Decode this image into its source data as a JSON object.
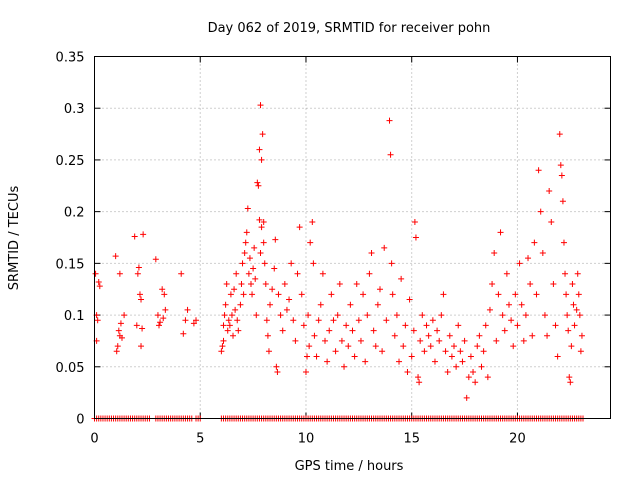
{
  "chart_data": {
    "type": "scatter",
    "title": "Day 062 of 2019, SRMTID for receiver pohn",
    "xlabel": "GPS time / hours",
    "ylabel": "SRMTID / TECUs",
    "xlim": [
      0,
      24.4
    ],
    "ylim": [
      0,
      0.35
    ],
    "xticks": [
      0,
      5,
      10,
      15,
      20
    ],
    "xtick_labels": [
      "0",
      "5",
      "10",
      "15",
      "20"
    ],
    "yticks": [
      0,
      0.05,
      0.1,
      0.15,
      0.2,
      0.25,
      0.3,
      0.35
    ],
    "ytick_labels": [
      "0",
      "0.05",
      "0.1",
      "0.15",
      "0.2",
      "0.25",
      "0.3",
      "0.35"
    ],
    "grid": true,
    "marker": "+",
    "color": "#ff0000",
    "series": [
      {
        "name": "SRMTID",
        "points": [
          [
            0.05,
            0.14
          ],
          [
            0.1,
            0.1
          ],
          [
            0.15,
            0.095
          ],
          [
            0.1,
            0.075
          ],
          [
            0.2,
            0.132
          ],
          [
            0.25,
            0.128
          ],
          [
            1.0,
            0.157
          ],
          [
            1.05,
            0.065
          ],
          [
            1.1,
            0.07
          ],
          [
            1.15,
            0.085
          ],
          [
            1.2,
            0.08
          ],
          [
            1.25,
            0.092
          ],
          [
            1.3,
            0.078
          ],
          [
            1.2,
            0.14
          ],
          [
            1.4,
            0.1
          ],
          [
            1.9,
            0.176
          ],
          [
            2.0,
            0.09
          ],
          [
            2.05,
            0.14
          ],
          [
            2.1,
            0.146
          ],
          [
            2.15,
            0.12
          ],
          [
            2.2,
            0.115
          ],
          [
            2.3,
            0.178
          ],
          [
            2.2,
            0.07
          ],
          [
            2.25,
            0.087
          ],
          [
            2.9,
            0.154
          ],
          [
            3.0,
            0.1
          ],
          [
            3.05,
            0.09
          ],
          [
            3.1,
            0.093
          ],
          [
            3.2,
            0.125
          ],
          [
            3.25,
            0.097
          ],
          [
            3.3,
            0.12
          ],
          [
            3.35,
            0.105
          ],
          [
            4.1,
            0.14
          ],
          [
            4.2,
            0.082
          ],
          [
            4.3,
            0.095
          ],
          [
            4.4,
            0.105
          ],
          [
            4.7,
            0.092
          ],
          [
            4.8,
            0.095
          ],
          [
            6.0,
            0.065
          ],
          [
            6.05,
            0.07
          ],
          [
            6.1,
            0.075
          ],
          [
            6.1,
            0.09
          ],
          [
            6.15,
            0.1
          ],
          [
            6.2,
            0.11
          ],
          [
            6.25,
            0.13
          ],
          [
            6.3,
            0.085
          ],
          [
            6.35,
            0.095
          ],
          [
            6.4,
            0.09
          ],
          [
            6.45,
            0.12
          ],
          [
            6.5,
            0.1
          ],
          [
            6.55,
            0.08
          ],
          [
            6.6,
            0.125
          ],
          [
            6.65,
            0.105
          ],
          [
            6.7,
            0.14
          ],
          [
            6.75,
            0.095
          ],
          [
            6.8,
            0.085
          ],
          [
            6.9,
            0.11
          ],
          [
            6.95,
            0.13
          ],
          [
            7.0,
            0.15
          ],
          [
            7.05,
            0.12
          ],
          [
            7.1,
            0.16
          ],
          [
            7.15,
            0.17
          ],
          [
            7.2,
            0.18
          ],
          [
            7.25,
            0.203
          ],
          [
            7.3,
            0.14
          ],
          [
            7.35,
            0.155
          ],
          [
            7.4,
            0.13
          ],
          [
            7.45,
            0.12
          ],
          [
            7.5,
            0.145
          ],
          [
            7.55,
            0.165
          ],
          [
            7.6,
            0.135
          ],
          [
            7.65,
            0.1
          ],
          [
            7.7,
            0.228
          ],
          [
            7.75,
            0.225
          ],
          [
            7.8,
            0.26
          ],
          [
            7.85,
            0.303
          ],
          [
            7.9,
            0.25
          ],
          [
            7.95,
            0.275
          ],
          [
            8.0,
            0.19
          ],
          [
            7.8,
            0.192
          ],
          [
            7.9,
            0.185
          ],
          [
            8.0,
            0.17
          ],
          [
            7.85,
            0.16
          ],
          [
            8.05,
            0.15
          ],
          [
            8.1,
            0.13
          ],
          [
            8.15,
            0.095
          ],
          [
            8.2,
            0.08
          ],
          [
            8.25,
            0.065
          ],
          [
            8.3,
            0.11
          ],
          [
            8.4,
            0.125
          ],
          [
            8.5,
            0.145
          ],
          [
            8.55,
            0.173
          ],
          [
            8.6,
            0.05
          ],
          [
            8.65,
            0.045
          ],
          [
            8.7,
            0.12
          ],
          [
            8.8,
            0.1
          ],
          [
            8.9,
            0.085
          ],
          [
            9.0,
            0.13
          ],
          [
            9.1,
            0.105
          ],
          [
            9.2,
            0.115
          ],
          [
            9.3,
            0.15
          ],
          [
            9.4,
            0.095
          ],
          [
            9.5,
            0.075
          ],
          [
            9.6,
            0.14
          ],
          [
            9.7,
            0.185
          ],
          [
            9.8,
            0.12
          ],
          [
            9.9,
            0.09
          ],
          [
            10.0,
            0.045
          ],
          [
            10.05,
            0.06
          ],
          [
            10.1,
            0.1
          ],
          [
            10.15,
            0.07
          ],
          [
            10.2,
            0.17
          ],
          [
            10.3,
            0.19
          ],
          [
            10.35,
            0.15
          ],
          [
            10.4,
            0.08
          ],
          [
            10.5,
            0.06
          ],
          [
            10.6,
            0.095
          ],
          [
            10.7,
            0.11
          ],
          [
            10.8,
            0.14
          ],
          [
            10.9,
            0.075
          ],
          [
            11.0,
            0.055
          ],
          [
            11.1,
            0.085
          ],
          [
            11.2,
            0.12
          ],
          [
            11.3,
            0.095
          ],
          [
            11.4,
            0.065
          ],
          [
            11.5,
            0.1
          ],
          [
            11.6,
            0.13
          ],
          [
            11.7,
            0.075
          ],
          [
            11.8,
            0.05
          ],
          [
            11.9,
            0.09
          ],
          [
            12.0,
            0.07
          ],
          [
            12.1,
            0.11
          ],
          [
            12.2,
            0.085
          ],
          [
            12.3,
            0.06
          ],
          [
            12.4,
            0.13
          ],
          [
            12.5,
            0.095
          ],
          [
            12.6,
            0.075
          ],
          [
            12.7,
            0.12
          ],
          [
            12.8,
            0.055
          ],
          [
            12.9,
            0.1
          ],
          [
            13.0,
            0.14
          ],
          [
            13.1,
            0.16
          ],
          [
            13.2,
            0.085
          ],
          [
            13.3,
            0.07
          ],
          [
            13.4,
            0.11
          ],
          [
            13.5,
            0.125
          ],
          [
            13.6,
            0.065
          ],
          [
            13.7,
            0.165
          ],
          [
            13.8,
            0.095
          ],
          [
            13.95,
            0.288
          ],
          [
            14.0,
            0.255
          ],
          [
            14.05,
            0.15
          ],
          [
            14.1,
            0.12
          ],
          [
            14.2,
            0.08
          ],
          [
            14.3,
            0.1
          ],
          [
            14.4,
            0.055
          ],
          [
            14.5,
            0.135
          ],
          [
            14.6,
            0.07
          ],
          [
            14.7,
            0.09
          ],
          [
            14.8,
            0.045
          ],
          [
            14.9,
            0.115
          ],
          [
            15.0,
            0.06
          ],
          [
            15.1,
            0.085
          ],
          [
            15.15,
            0.19
          ],
          [
            15.2,
            0.175
          ],
          [
            15.3,
            0.04
          ],
          [
            15.35,
            0.035
          ],
          [
            15.4,
            0.075
          ],
          [
            15.5,
            0.1
          ],
          [
            15.6,
            0.065
          ],
          [
            15.7,
            0.09
          ],
          [
            15.8,
            0.08
          ],
          [
            15.9,
            0.07
          ],
          [
            16.0,
            0.095
          ],
          [
            16.1,
            0.055
          ],
          [
            16.2,
            0.085
          ],
          [
            16.3,
            0.075
          ],
          [
            16.4,
            0.1
          ],
          [
            16.5,
            0.12
          ],
          [
            16.6,
            0.065
          ],
          [
            16.7,
            0.045
          ],
          [
            16.8,
            0.08
          ],
          [
            16.9,
            0.06
          ],
          [
            17.0,
            0.07
          ],
          [
            17.1,
            0.05
          ],
          [
            17.2,
            0.09
          ],
          [
            17.3,
            0.065
          ],
          [
            17.4,
            0.055
          ],
          [
            17.5,
            0.075
          ],
          [
            17.6,
            0.02
          ],
          [
            17.7,
            0.04
          ],
          [
            17.8,
            0.06
          ],
          [
            17.9,
            0.045
          ],
          [
            18.0,
            0.035
          ],
          [
            18.1,
            0.07
          ],
          [
            18.2,
            0.08
          ],
          [
            18.3,
            0.05
          ],
          [
            18.4,
            0.065
          ],
          [
            18.5,
            0.09
          ],
          [
            18.6,
            0.04
          ],
          [
            18.7,
            0.105
          ],
          [
            18.8,
            0.13
          ],
          [
            18.9,
            0.16
          ],
          [
            19.0,
            0.075
          ],
          [
            19.1,
            0.12
          ],
          [
            19.2,
            0.18
          ],
          [
            19.3,
            0.1
          ],
          [
            19.4,
            0.085
          ],
          [
            19.5,
            0.14
          ],
          [
            19.6,
            0.11
          ],
          [
            19.7,
            0.095
          ],
          [
            19.8,
            0.07
          ],
          [
            19.9,
            0.12
          ],
          [
            20.0,
            0.09
          ],
          [
            20.1,
            0.15
          ],
          [
            20.2,
            0.11
          ],
          [
            20.3,
            0.075
          ],
          [
            20.4,
            0.1
          ],
          [
            20.5,
            0.155
          ],
          [
            20.6,
            0.13
          ],
          [
            20.7,
            0.08
          ],
          [
            20.8,
            0.17
          ],
          [
            20.9,
            0.12
          ],
          [
            21.0,
            0.24
          ],
          [
            21.1,
            0.2
          ],
          [
            21.2,
            0.16
          ],
          [
            21.3,
            0.1
          ],
          [
            21.4,
            0.08
          ],
          [
            21.5,
            0.22
          ],
          [
            21.6,
            0.19
          ],
          [
            21.7,
            0.13
          ],
          [
            21.8,
            0.09
          ],
          [
            21.9,
            0.06
          ],
          [
            22.0,
            0.275
          ],
          [
            22.05,
            0.245
          ],
          [
            22.1,
            0.235
          ],
          [
            22.15,
            0.21
          ],
          [
            22.2,
            0.17
          ],
          [
            22.25,
            0.14
          ],
          [
            22.3,
            0.12
          ],
          [
            22.35,
            0.1
          ],
          [
            22.4,
            0.085
          ],
          [
            22.45,
            0.04
          ],
          [
            22.5,
            0.035
          ],
          [
            22.55,
            0.07
          ],
          [
            22.6,
            0.13
          ],
          [
            22.65,
            0.11
          ],
          [
            22.7,
            0.09
          ],
          [
            22.8,
            0.105
          ],
          [
            22.85,
            0.14
          ],
          [
            22.9,
            0.12
          ],
          [
            22.95,
            0.1
          ],
          [
            23.0,
            0.065
          ],
          [
            23.05,
            0.08
          ]
        ],
        "zero_intervals": [
          [
            0.0,
            2.6
          ],
          [
            2.9,
            4.6
          ],
          [
            4.8,
            5.0
          ],
          [
            6.0,
            23.1
          ]
        ]
      }
    ]
  }
}
